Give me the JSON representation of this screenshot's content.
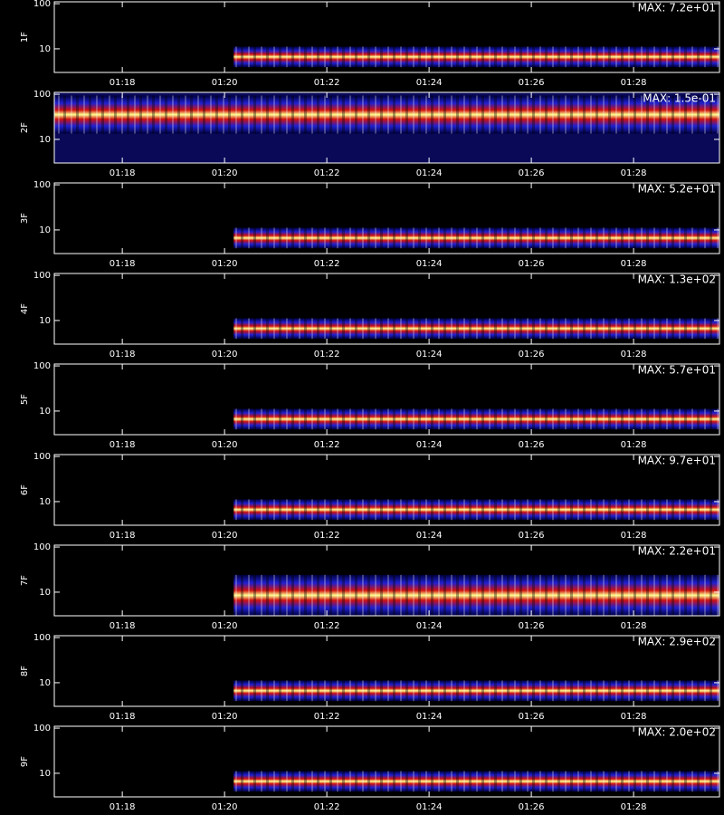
{
  "chart_data": {
    "type": "spectrogram",
    "scale": "log",
    "xlim": [
      76.67,
      89.68
    ],
    "xticks": [
      {
        "value": 78,
        "label": "01:18"
      },
      {
        "value": 80,
        "label": "01:20"
      },
      {
        "value": 82,
        "label": "01:22"
      },
      {
        "value": 84,
        "label": "01:24"
      },
      {
        "value": 86,
        "label": "01:26"
      },
      {
        "value": 88,
        "label": "01:28"
      }
    ],
    "ylim": [
      3,
      110
    ],
    "yticks": [
      10,
      100
    ],
    "series": [
      {
        "name": "1F",
        "max_label": "MAX: 7.2e+01",
        "band": [
          5.5,
          8
        ],
        "start": 80.18
      },
      {
        "name": "2F",
        "max_label": "MAX: 1.5e-01",
        "band": [
          25,
          50
        ],
        "start": 76.67,
        "noise": "#1010a0"
      },
      {
        "name": "3F",
        "max_label": "MAX: 5.2e+01",
        "band": [
          5.5,
          8
        ],
        "start": 80.18
      },
      {
        "name": "4F",
        "max_label": "MAX: 1.3e+02",
        "band": [
          5.5,
          8
        ],
        "start": 80.18
      },
      {
        "name": "5F",
        "max_label": "MAX: 5.7e+01",
        "band": [
          5.5,
          8
        ],
        "start": 80.18
      },
      {
        "name": "6F",
        "max_label": "MAX: 9.7e+01",
        "band": [
          5.5,
          8
        ],
        "start": 80.18
      },
      {
        "name": "7F",
        "max_label": "MAX: 2.2e+01",
        "band": [
          5.5,
          12
        ],
        "start": 80.18
      },
      {
        "name": "8F",
        "max_label": "MAX: 2.9e+02",
        "band": [
          5.5,
          8
        ],
        "start": 80.18
      },
      {
        "name": "9F",
        "max_label": "MAX: 2.0e+02",
        "band": [
          5.5,
          8
        ],
        "start": 80.18
      }
    ]
  }
}
